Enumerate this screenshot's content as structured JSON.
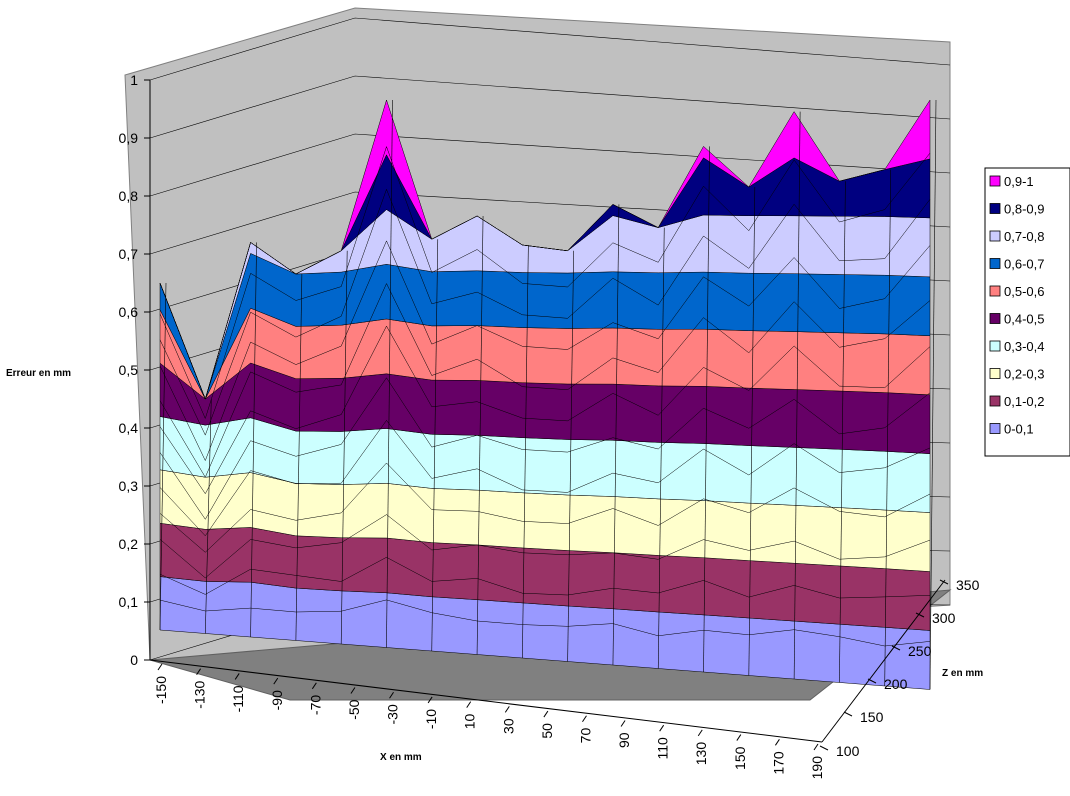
{
  "chart_data": {
    "type": "surface-3d",
    "title": "",
    "ylabel": "Erreur en mm",
    "xlabel": "X en mm",
    "zlabel": "Z en mm",
    "ylim": [
      0,
      1
    ],
    "y_ticks": [
      "0",
      "0,1",
      "0,2",
      "0,3",
      "0,4",
      "0,5",
      "0,6",
      "0,7",
      "0,8",
      "0,9",
      "1"
    ],
    "x_ticks": [
      "-150",
      "-130",
      "-110",
      "-90",
      "-70",
      "-50",
      "-30",
      "-10",
      "10",
      "30",
      "50",
      "70",
      "90",
      "110",
      "130",
      "150",
      "170",
      "190"
    ],
    "z_ticks": [
      "100",
      "150",
      "200",
      "250",
      "300",
      "350"
    ],
    "legend_position": "right",
    "bands": [
      {
        "name": "0,9-1",
        "color": "#ff00ff"
      },
      {
        "name": "0,8-0,9",
        "color": "#000080"
      },
      {
        "name": "0,7-0,8",
        "color": "#ccccff"
      },
      {
        "name": "0,6-0,7",
        "color": "#0066cc"
      },
      {
        "name": "0,5-0,6",
        "color": "#ff8080"
      },
      {
        "name": "0,4-0,5",
        "color": "#660066"
      },
      {
        "name": "0,3-0,4",
        "color": "#ccffff"
      },
      {
        "name": "0,2-0,3",
        "color": "#ffffcc"
      },
      {
        "name": "0,1-0,2",
        "color": "#993366"
      },
      {
        "name": "0-0,1",
        "color": "#9999ff"
      }
    ],
    "surface_profile": {
      "x_mm": [
        -150,
        -130,
        -110,
        -90,
        -70,
        -50,
        -30,
        -10,
        10,
        30,
        50,
        70,
        90,
        110,
        130,
        150,
        170,
        190
      ],
      "z_mm": [
        100,
        150,
        200,
        250,
        300,
        350
      ],
      "max_error_back_row": [
        0.65,
        0.45,
        0.72,
        0.7,
        0.74,
        1.0,
        0.76,
        0.8,
        0.75,
        0.74,
        0.82,
        0.78,
        0.92,
        0.85,
        0.98,
        0.86,
        0.88,
        1.0
      ],
      "min_error_front_row": [
        0.07,
        0.05,
        0.06,
        0.04,
        0.03,
        0.03,
        0.02,
        0.03,
        0.02,
        0.02,
        0.03,
        0.02,
        0.03,
        0.02,
        0.03,
        0.04,
        0.05,
        0.06
      ]
    }
  }
}
